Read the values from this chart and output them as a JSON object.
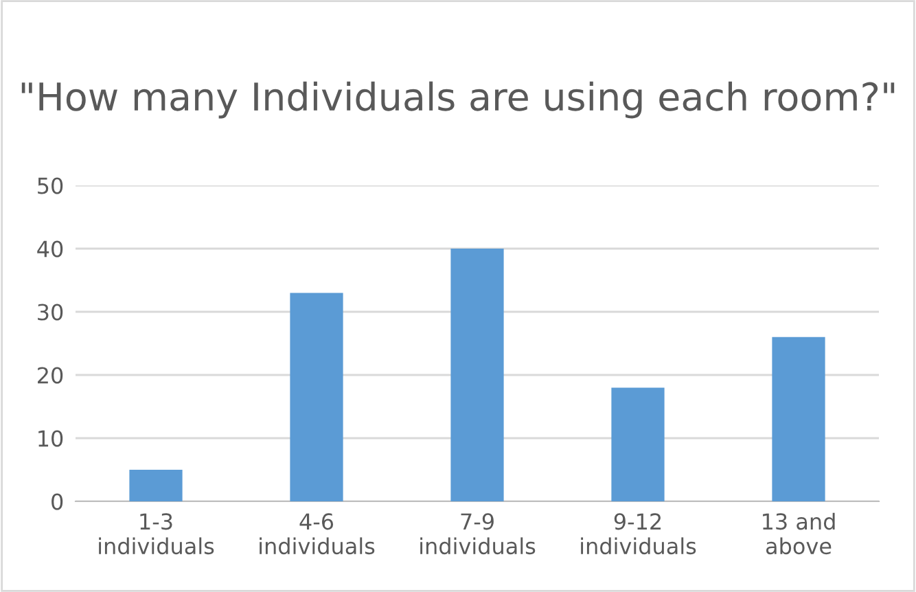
{
  "chart_data": {
    "type": "bar",
    "title": "\"How many Individuals are using each room?\"",
    "categories": [
      "1-3\nindividuals",
      "4-6\nindividuals",
      "7-9\nindividuals",
      "9-12\nindividuals",
      "13 and\nabove"
    ],
    "values": [
      5,
      33,
      40,
      18,
      26
    ],
    "color": "#5b9bd5",
    "ylim": [
      0,
      50
    ],
    "yticks": [
      0,
      10,
      20,
      30,
      40,
      50
    ],
    "grid": "y",
    "legend": false
  }
}
